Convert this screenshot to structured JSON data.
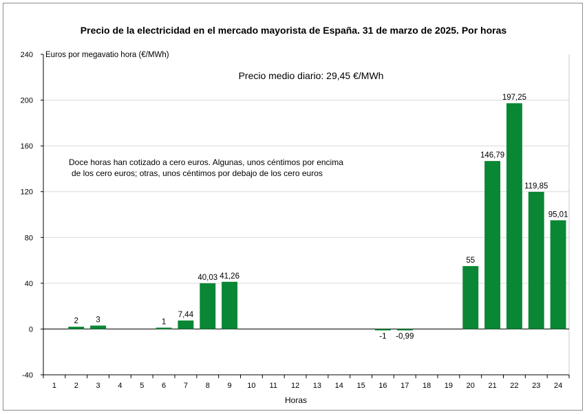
{
  "chart_data": {
    "type": "bar",
    "title": "Precio de la electricidad en el mercado mayorista de España. 31 de marzo de 2025. Por horas",
    "ylabel": "Euros por megavatio hora (€/MWh)",
    "xlabel": "Horas",
    "ylim": [
      -40,
      240
    ],
    "yticks": [
      -40,
      0,
      40,
      80,
      120,
      160,
      200,
      240
    ],
    "categories": [
      "1",
      "2",
      "3",
      "4",
      "5",
      "6",
      "7",
      "8",
      "9",
      "10",
      "11",
      "12",
      "13",
      "14",
      "15",
      "16",
      "17",
      "18",
      "19",
      "20",
      "21",
      "22",
      "23",
      "24"
    ],
    "values": [
      0,
      2,
      3,
      0,
      0,
      1,
      7.44,
      40.03,
      41.26,
      0,
      0,
      0,
      0,
      0,
      0,
      -1,
      -0.99,
      0,
      0,
      55,
      146.79,
      197.25,
      119.85,
      95.01
    ],
    "data_labels": [
      "",
      "2",
      "3",
      "",
      "",
      "1",
      "7,44",
      "40,03",
      "41,26",
      "",
      "",
      "",
      "",
      "",
      "",
      "-1",
      "-0,99",
      "",
      "",
      "55",
      "146,79",
      "197,25",
      "119,85",
      "95,01"
    ],
    "bar_color": "#0a8734",
    "grid": true,
    "annotations": {
      "mean_price": "Precio medio diario: 29,45 €/MWh",
      "note_line1": "Doce horas han cotizado a cero euros. Algunas, unos céntimos por encima",
      "note_line2": "de los cero euros; otras, unos céntimos por debajo de los cero euros"
    }
  }
}
